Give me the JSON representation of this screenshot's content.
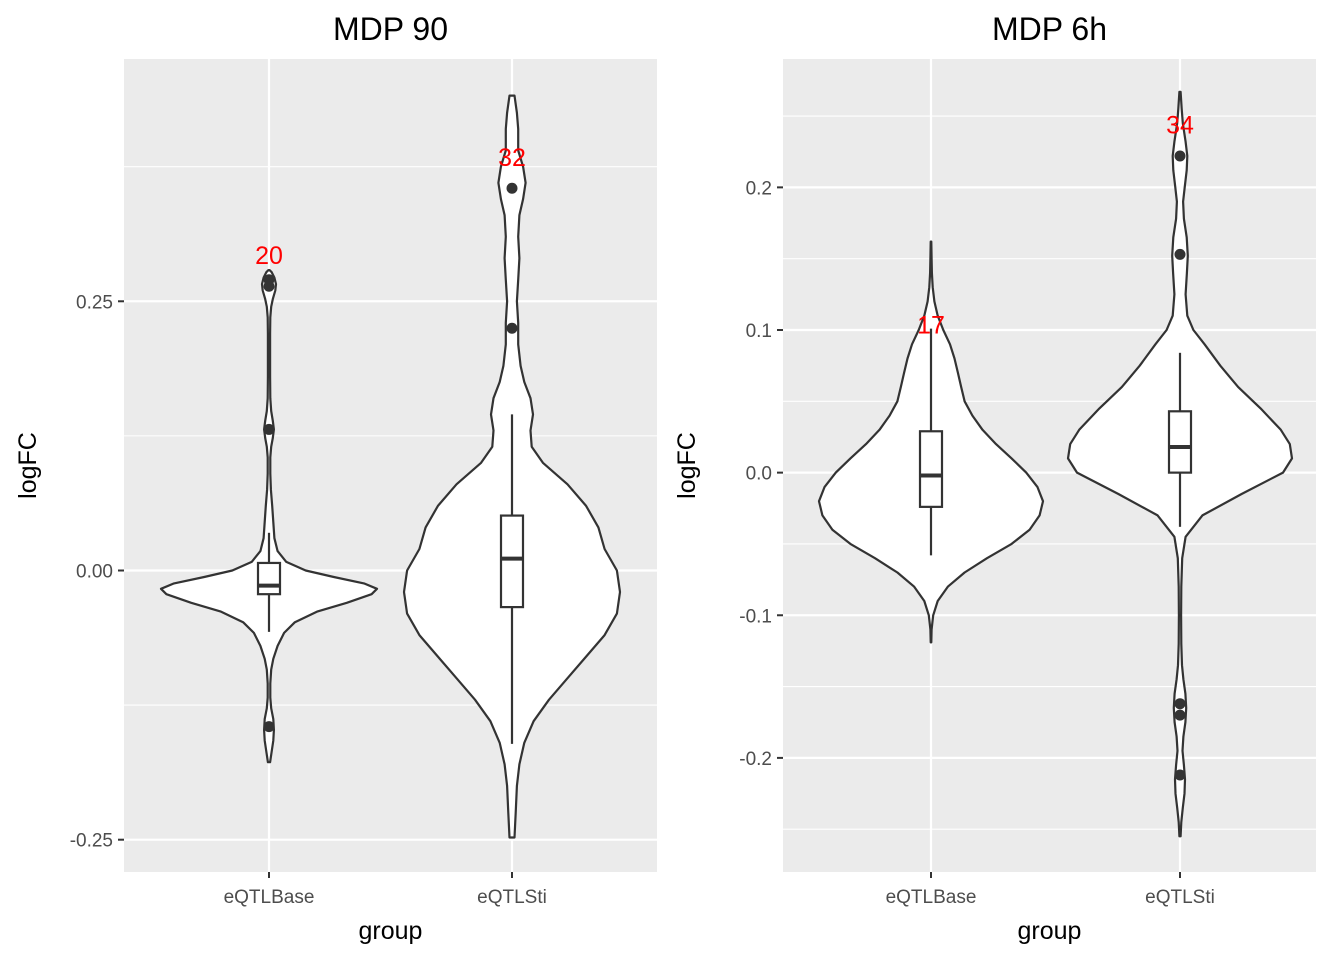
{
  "chart_data": [
    {
      "type": "violin",
      "title": "MDP 90",
      "xlabel": "group",
      "ylabel": "logFC",
      "categories": [
        "eQTLBase",
        "eQTLSti"
      ],
      "ylim": [
        -0.28,
        0.475
      ],
      "y_ticks": [
        -0.25,
        0.0,
        0.25
      ],
      "y_tick_labels": [
        "-0.25",
        "0.00",
        "0.25"
      ],
      "grid": true,
      "groups": [
        {
          "name": "eQTLBase",
          "count_label": "20",
          "count_y": 0.293,
          "box": {
            "min": -0.057,
            "q1": -0.022,
            "median": -0.014,
            "q3": 0.007,
            "max": 0.035
          },
          "outliers": [
            0.27,
            0.264,
            0.131,
            -0.145
          ],
          "violin_range": [
            -0.178,
            0.279
          ],
          "density": [
            [
              -0.178,
              0.01
            ],
            [
              -0.168,
              0.025
            ],
            [
              -0.158,
              0.04
            ],
            [
              -0.148,
              0.045
            ],
            [
              -0.138,
              0.04
            ],
            [
              -0.128,
              0.02
            ],
            [
              -0.118,
              0.012
            ],
            [
              -0.105,
              0.012
            ],
            [
              -0.092,
              0.02
            ],
            [
              -0.082,
              0.04
            ],
            [
              -0.07,
              0.08
            ],
            [
              -0.058,
              0.14
            ],
            [
              -0.048,
              0.24
            ],
            [
              -0.038,
              0.45
            ],
            [
              -0.03,
              0.72
            ],
            [
              -0.022,
              0.95
            ],
            [
              -0.017,
              1.0
            ],
            [
              -0.012,
              0.88
            ],
            [
              -0.006,
              0.6
            ],
            [
              0.0,
              0.34
            ],
            [
              0.008,
              0.16
            ],
            [
              0.018,
              0.08
            ],
            [
              0.03,
              0.05
            ],
            [
              0.045,
              0.04
            ],
            [
              0.06,
              0.03
            ],
            [
              0.075,
              0.018
            ],
            [
              0.09,
              0.012
            ],
            [
              0.105,
              0.012
            ],
            [
              0.115,
              0.02
            ],
            [
              0.123,
              0.035
            ],
            [
              0.131,
              0.045
            ],
            [
              0.139,
              0.035
            ],
            [
              0.148,
              0.02
            ],
            [
              0.16,
              0.012
            ],
            [
              0.18,
              0.01
            ],
            [
              0.2,
              0.01
            ],
            [
              0.22,
              0.01
            ],
            [
              0.235,
              0.012
            ],
            [
              0.245,
              0.02
            ],
            [
              0.252,
              0.035
            ],
            [
              0.26,
              0.058
            ],
            [
              0.266,
              0.065
            ],
            [
              0.272,
              0.05
            ],
            [
              0.277,
              0.025
            ],
            [
              0.279,
              0.005
            ]
          ]
        },
        {
          "name": "eQTLSti",
          "count_label": "32",
          "count_y": 0.384,
          "box": {
            "min": -0.161,
            "q1": -0.034,
            "median": 0.011,
            "q3": 0.051,
            "max": 0.145
          },
          "outliers": [
            0.355,
            0.225
          ],
          "violin_range": [
            -0.248,
            0.441
          ],
          "density": [
            [
              -0.248,
              0.004
            ],
            [
              -0.225,
              0.006
            ],
            [
              -0.2,
              0.008
            ],
            [
              -0.18,
              0.012
            ],
            [
              -0.16,
              0.02
            ],
            [
              -0.14,
              0.035
            ],
            [
              -0.12,
              0.06
            ],
            [
              -0.1,
              0.09
            ],
            [
              -0.08,
              0.12
            ],
            [
              -0.06,
              0.15
            ],
            [
              -0.04,
              0.17
            ],
            [
              -0.02,
              0.175
            ],
            [
              0.0,
              0.17
            ],
            [
              0.02,
              0.15
            ],
            [
              0.04,
              0.14
            ],
            [
              0.06,
              0.12
            ],
            [
              0.08,
              0.09
            ],
            [
              0.1,
              0.05
            ],
            [
              0.115,
              0.032
            ],
            [
              0.13,
              0.03
            ],
            [
              0.145,
              0.034
            ],
            [
              0.16,
              0.03
            ],
            [
              0.175,
              0.02
            ],
            [
              0.19,
              0.014
            ],
            [
              0.21,
              0.01
            ],
            [
              0.23,
              0.01
            ],
            [
              0.25,
              0.008
            ],
            [
              0.27,
              0.01
            ],
            [
              0.29,
              0.012
            ],
            [
              0.31,
              0.01
            ],
            [
              0.33,
              0.012
            ],
            [
              0.345,
              0.018
            ],
            [
              0.36,
              0.022
            ],
            [
              0.375,
              0.018
            ],
            [
              0.39,
              0.01
            ],
            [
              0.41,
              0.01
            ],
            [
              0.425,
              0.008
            ],
            [
              0.441,
              0.004
            ]
          ]
        }
      ]
    },
    {
      "type": "violin",
      "title": "MDP 6h",
      "xlabel": "group",
      "ylabel": "logFC",
      "categories": [
        "eQTLBase",
        "eQTLSti"
      ],
      "ylim": [
        -0.28,
        0.29
      ],
      "y_ticks": [
        -0.2,
        -0.1,
        0.0,
        0.1,
        0.2
      ],
      "y_tick_labels": [
        "-0.2",
        "-0.1",
        "0.0",
        "0.1",
        "0.2"
      ],
      "grid": true,
      "groups": [
        {
          "name": "eQTLBase",
          "count_label": "17",
          "count_y": 0.104,
          "box": {
            "min": -0.058,
            "q1": -0.024,
            "median": -0.002,
            "q3": 0.029,
            "max": 0.101
          },
          "outliers": [],
          "violin_range": [
            -0.119,
            0.162
          ],
          "density": [
            [
              -0.119,
              0.003
            ],
            [
              -0.11,
              0.005
            ],
            [
              -0.1,
              0.02
            ],
            [
              -0.09,
              0.06
            ],
            [
              -0.08,
              0.15
            ],
            [
              -0.07,
              0.3
            ],
            [
              -0.06,
              0.5
            ],
            [
              -0.05,
              0.72
            ],
            [
              -0.04,
              0.88
            ],
            [
              -0.03,
              0.97
            ],
            [
              -0.02,
              1.0
            ],
            [
              -0.01,
              0.95
            ],
            [
              0.0,
              0.85
            ],
            [
              0.01,
              0.72
            ],
            [
              0.02,
              0.58
            ],
            [
              0.03,
              0.46
            ],
            [
              0.04,
              0.37
            ],
            [
              0.05,
              0.3
            ],
            [
              0.06,
              0.27
            ],
            [
              0.07,
              0.24
            ],
            [
              0.08,
              0.21
            ],
            [
              0.09,
              0.17
            ],
            [
              0.1,
              0.11
            ],
            [
              0.11,
              0.06
            ],
            [
              0.12,
              0.03
            ],
            [
              0.13,
              0.015
            ],
            [
              0.14,
              0.008
            ],
            [
              0.15,
              0.005
            ],
            [
              0.162,
              0.003
            ]
          ]
        },
        {
          "name": "eQTLSti",
          "count_label": "34",
          "count_y": 0.244,
          "box": {
            "min": -0.038,
            "q1": -0.0,
            "median": 0.018,
            "q3": 0.043,
            "max": 0.084
          },
          "outliers": [
            0.222,
            0.153,
            -0.162,
            -0.17,
            -0.212
          ],
          "violin_range": [
            -0.255,
            0.267
          ],
          "density": [
            [
              -0.255,
              0.005
            ],
            [
              -0.245,
              0.012
            ],
            [
              -0.235,
              0.025
            ],
            [
              -0.225,
              0.04
            ],
            [
              -0.215,
              0.045
            ],
            [
              -0.205,
              0.035
            ],
            [
              -0.195,
              0.022
            ],
            [
              -0.185,
              0.03
            ],
            [
              -0.175,
              0.048
            ],
            [
              -0.165,
              0.055
            ],
            [
              -0.155,
              0.048
            ],
            [
              -0.145,
              0.03
            ],
            [
              -0.135,
              0.018
            ],
            [
              -0.12,
              0.012
            ],
            [
              -0.1,
              0.01
            ],
            [
              -0.08,
              0.012
            ],
            [
              -0.06,
              0.02
            ],
            [
              -0.045,
              0.05
            ],
            [
              -0.03,
              0.2
            ],
            [
              -0.015,
              0.55
            ],
            [
              0.0,
              0.92
            ],
            [
              0.01,
              1.0
            ],
            [
              0.02,
              0.98
            ],
            [
              0.03,
              0.9
            ],
            [
              0.045,
              0.72
            ],
            [
              0.06,
              0.52
            ],
            [
              0.075,
              0.36
            ],
            [
              0.09,
              0.22
            ],
            [
              0.1,
              0.12
            ],
            [
              0.11,
              0.065
            ],
            [
              0.125,
              0.05
            ],
            [
              0.14,
              0.062
            ],
            [
              0.152,
              0.07
            ],
            [
              0.165,
              0.06
            ],
            [
              0.178,
              0.035
            ],
            [
              0.19,
              0.028
            ],
            [
              0.2,
              0.042
            ],
            [
              0.212,
              0.06
            ],
            [
              0.222,
              0.065
            ],
            [
              0.232,
              0.05
            ],
            [
              0.245,
              0.025
            ],
            [
              0.255,
              0.015
            ],
            [
              0.267,
              0.005
            ]
          ]
        }
      ]
    }
  ]
}
